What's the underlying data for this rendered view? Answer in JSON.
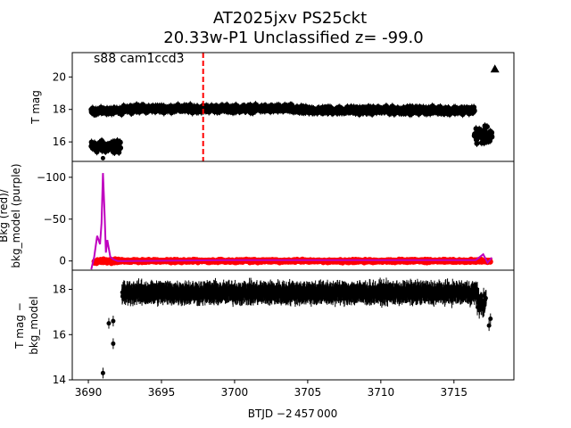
{
  "title_line1": "AT2025jxv  PS25ckt",
  "title_line2": "20.33w-P1 Unclassified z= -99.0",
  "sector_label": "s88 cam1ccd3",
  "xlabel": "BTJD −2 457 000",
  "colors": {
    "main": "#000000",
    "bkg": "#ff0000",
    "bkg_model": "#bf00bf",
    "marker": "#ff0000"
  },
  "chart_data": [
    {
      "type": "scatter",
      "panel": "top",
      "ylabel": "T mag",
      "ylim": [
        21.5,
        14.8
      ],
      "yticks": [
        16,
        18,
        20
      ],
      "xlim": [
        3688.9,
        3719.1
      ],
      "discovery_marker_x": 3697.85,
      "series": [
        {
          "name": "T mag",
          "style": "errorbar-dots",
          "segments": [
            {
              "x0": 3690.2,
              "x1": 3692.2,
              "y": 15.7,
              "scatter": 0.5
            },
            {
              "x0": 3690.2,
              "x1": 3692.4,
              "y": 17.9,
              "scatter": 0.25
            },
            {
              "x0": 3692.4,
              "x1": 3704.0,
              "y": 18.05,
              "scatter": 0.3
            },
            {
              "x0": 3704.0,
              "x1": 3716.4,
              "y": 17.95,
              "scatter": 0.3
            },
            {
              "x0": 3716.4,
              "x1": 3717.6,
              "y": 16.4,
              "scatter": 0.7
            }
          ],
          "points": [
            {
              "x": 3691.0,
              "y": 15.0
            },
            {
              "x": 3717.8,
              "y": 20.5,
              "marker": "triangle"
            }
          ]
        }
      ]
    },
    {
      "type": "scatter",
      "panel": "middle",
      "ylabel": "Bkg (red)/\nbkg_model (purple)",
      "ylim": [
        -119,
        11
      ],
      "yticks": [
        0,
        -50,
        -100
      ],
      "series": [
        {
          "name": "Bkg",
          "color": "red",
          "segments": [
            {
              "x0": 3690.4,
              "x1": 3692.0,
              "y": 0,
              "scatter": 4
            },
            {
              "x0": 3692.0,
              "x1": 3717.5,
              "y": 0,
              "scatter": 2.5
            }
          ]
        },
        {
          "name": "bkg_model",
          "color": "purple",
          "x": [
            3690.2,
            3690.4,
            3690.6,
            3690.8,
            3690.9,
            3691.0,
            3691.1,
            3691.2,
            3691.3,
            3691.5,
            3691.7,
            3692.0,
            3692.5,
            3700,
            3710,
            3716.5,
            3717.0,
            3717.3,
            3717.6
          ],
          "values": [
            10,
            -5,
            -30,
            -20,
            -45,
            -105,
            -60,
            -10,
            -25,
            -5,
            -2,
            0,
            0,
            -1,
            -1,
            -1,
            -8,
            2,
            -4
          ]
        }
      ]
    },
    {
      "type": "scatter",
      "panel": "bottom",
      "ylabel": "T mag −\nbkg_model",
      "ylim": [
        18.85,
        14.0
      ],
      "yticks": [
        14,
        16,
        18
      ],
      "xticks": [
        3690,
        3695,
        3700,
        3705,
        3710,
        3715
      ],
      "series": [
        {
          "name": "T mag - bkg_model",
          "style": "errorbar-dots",
          "points": [
            {
              "x": 3691.0,
              "y": 14.3
            },
            {
              "x": 3691.7,
              "y": 15.6
            },
            {
              "x": 3691.4,
              "y": 16.5
            },
            {
              "x": 3691.7,
              "y": 16.6
            },
            {
              "x": 3692.4,
              "y": 17.7
            },
            {
              "x": 3717.5,
              "y": 16.7
            },
            {
              "x": 3717.4,
              "y": 16.4
            }
          ],
          "segments": [
            {
              "x0": 3692.3,
              "x1": 3716.6,
              "y": 17.85,
              "scatter": 0.35
            },
            {
              "x0": 3716.6,
              "x1": 3717.2,
              "y": 17.4,
              "scatter": 0.5
            }
          ]
        }
      ]
    }
  ]
}
